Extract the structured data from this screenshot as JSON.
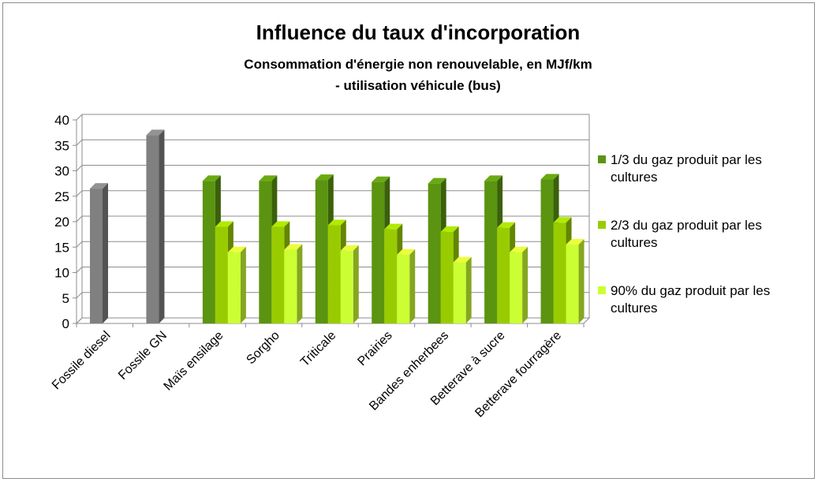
{
  "chart_data": {
    "type": "bar3d",
    "title": "Influence du taux d'incorporation",
    "subtitle": [
      "Consommation d'énergie non renouvelable, en MJf/km",
      "- utilisation véhicule (bus)"
    ],
    "categories": [
      "Fossile diesel",
      "Fossile GN",
      "Maïs ensilage",
      "Sorgho",
      "Triticale",
      "Prairies",
      "Bandes enherbees",
      "Betterave à sucre",
      "Betterave fourragère"
    ],
    "series": [
      {
        "name": "1/3 du gaz produit par les cultures",
        "color": "#5b9410",
        "point_colors": [
          "#808080",
          "#808080",
          null,
          null,
          null,
          null,
          null,
          null,
          null
        ],
        "values": [
          26.5,
          37,
          28,
          28,
          28.2,
          27.8,
          27.5,
          28,
          28.3
        ]
      },
      {
        "name": "2/3 du gaz produit par les cultures",
        "color": "#99cc00",
        "values": [
          null,
          null,
          19,
          19,
          19.3,
          18.5,
          18,
          18.8,
          19.8
        ]
      },
      {
        "name": "90% du gaz produit par les cultures",
        "color": "#ccff33",
        "values": [
          null,
          null,
          14,
          14.5,
          14.3,
          13.5,
          12,
          14,
          15.5
        ]
      }
    ],
    "ylim": [
      0,
      40
    ],
    "yticks": [
      0,
      5,
      10,
      15,
      20,
      25,
      30,
      35,
      40
    ],
    "grid": true,
    "legend": "right"
  }
}
